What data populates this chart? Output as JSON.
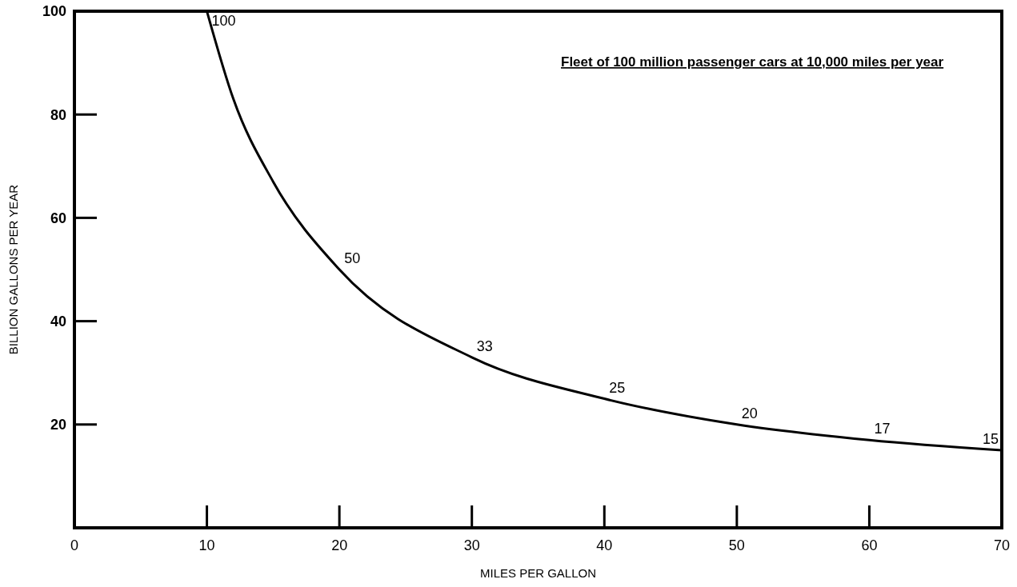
{
  "chart_data": {
    "type": "line",
    "xlabel": "MILES PER GALLON",
    "ylabel": "BILLION GALLONS PER YEAR",
    "annotations": [
      "Fleet of 100 million passenger cars at 10,000 miles per year"
    ],
    "x": [
      10,
      12,
      15,
      20,
      30,
      40,
      50,
      60,
      70
    ],
    "series": [
      {
        "color": "#000000",
        "values": [
          100,
          83,
          67,
          50,
          33,
          25,
          20,
          17,
          15
        ],
        "value_labels": [
          "100",
          null,
          null,
          "50",
          "33",
          "25",
          "20",
          "17",
          "15"
        ]
      }
    ],
    "xlim": [
      0,
      70
    ],
    "xticks": [
      0,
      10,
      20,
      30,
      40,
      50,
      60,
      70
    ],
    "ylim": [
      0,
      100
    ],
    "yticks": [
      20,
      40,
      60,
      80,
      100
    ],
    "grid": false,
    "marker": "none",
    "line_style": "solid"
  }
}
